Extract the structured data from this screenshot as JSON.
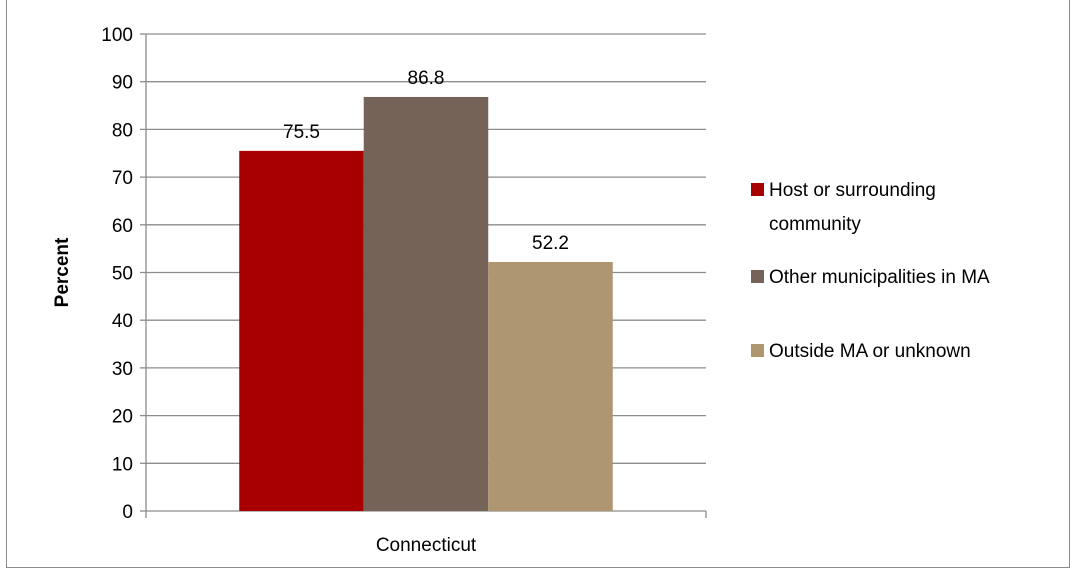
{
  "chart_data": {
    "type": "bar",
    "title": "",
    "categories": [
      "Connecticut"
    ],
    "series": [
      {
        "name": "Host or surrounding community",
        "values": [
          75.5
        ],
        "color": "#a80000"
      },
      {
        "name": "Other municipalities in MA",
        "values": [
          86.8
        ],
        "color": "#766358"
      },
      {
        "name": "Outside MA or unknown",
        "values": [
          52.2
        ],
        "color": "#ad9670"
      }
    ],
    "data_labels": [
      "75.5",
      "86.8",
      "52.2"
    ],
    "xlabel": "",
    "ylabel": "Percent",
    "ylim": [
      0,
      100
    ],
    "yticks": [
      0,
      10,
      20,
      30,
      40,
      50,
      60,
      70,
      80,
      90,
      100
    ],
    "grid": true,
    "legend_position": "right"
  }
}
